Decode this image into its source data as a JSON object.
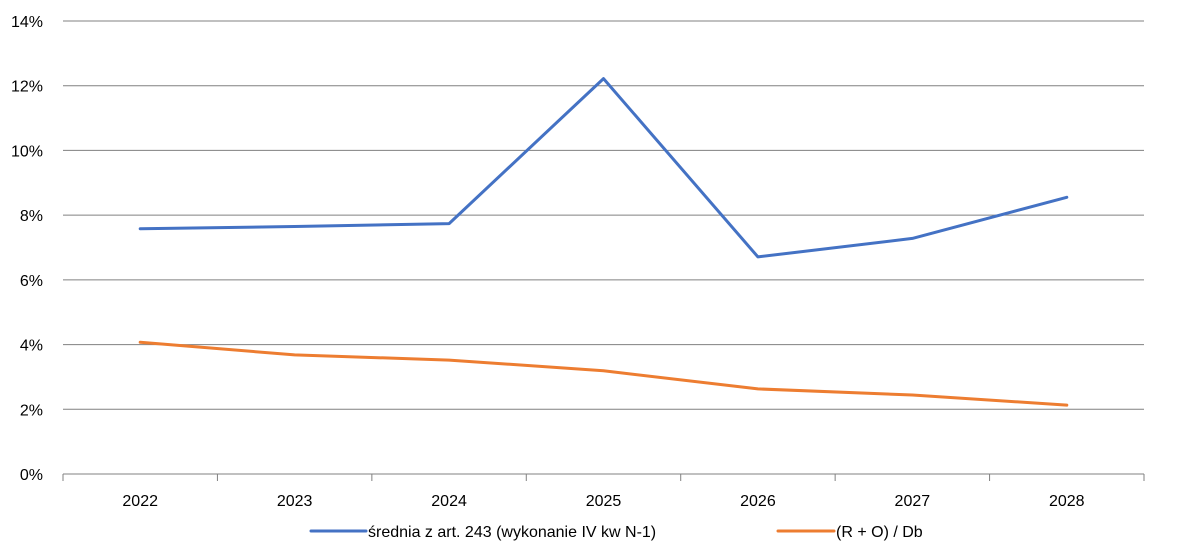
{
  "chart_data": {
    "type": "line",
    "categories": [
      "2022",
      "2023",
      "2024",
      "2025",
      "2026",
      "2027",
      "2028"
    ],
    "series": [
      {
        "name": "średnia z art. 243 (wykonanie IV kw N-1)",
        "values": [
          7.58,
          7.65,
          7.74,
          12.22,
          6.71,
          7.28,
          8.55
        ],
        "color": "#4472C4"
      },
      {
        "name": "(R + O) / Db",
        "values": [
          4.07,
          3.68,
          3.52,
          3.19,
          2.63,
          2.44,
          2.13
        ],
        "color": "#ED7D31"
      }
    ],
    "ylim": [
      0,
      14
    ],
    "yticks": [
      0,
      2,
      4,
      6,
      8,
      10,
      12,
      14
    ],
    "ytick_labels": [
      "0%",
      "2%",
      "4%",
      "6%",
      "8%",
      "10%",
      "12%",
      "14%"
    ],
    "grid": true,
    "legend_position": "bottom",
    "gridline_color": "#808080",
    "axis_color": "#808080"
  }
}
